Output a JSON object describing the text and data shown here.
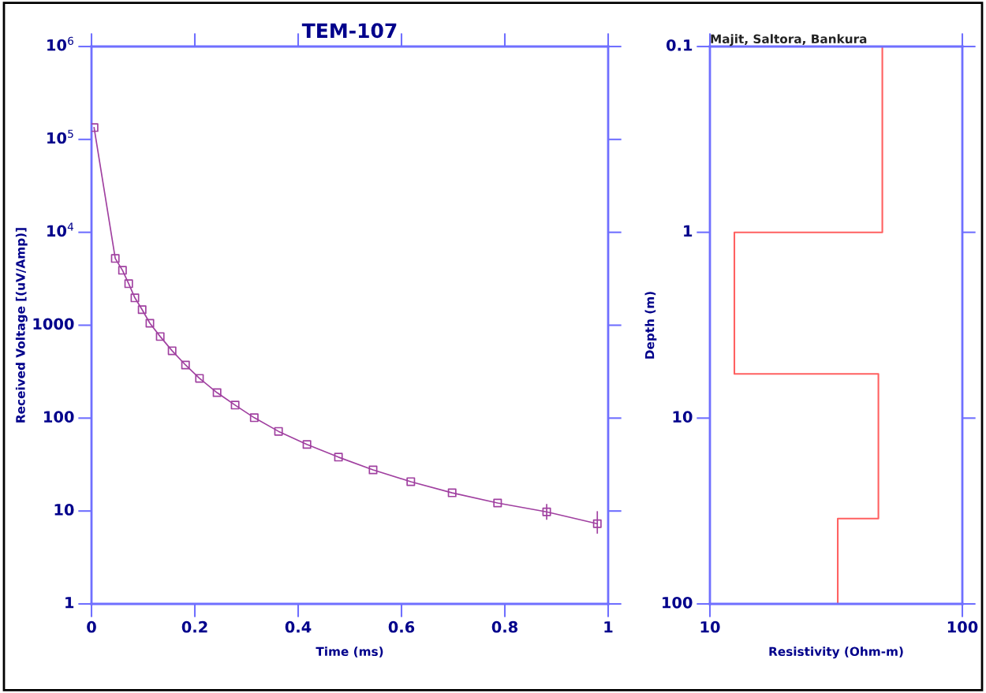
{
  "chart_data": [
    {
      "type": "line",
      "title": "TEM-107",
      "xlabel": "Time (ms)",
      "ylabel": "Received Voltage [(uV/Amp)]",
      "log": "y",
      "grid": false,
      "legend": false,
      "marker": "square",
      "line_style": "solid",
      "xlim": [
        0,
        1
      ],
      "xticks": [
        0,
        0.2,
        0.4,
        0.6,
        0.8,
        1
      ],
      "ylim": [
        1,
        1000000
      ],
      "yticks": [
        {
          "value": 1000000,
          "label": "10$^{6}$"
        },
        {
          "value": 100000,
          "label": "10$^{5}$"
        },
        {
          "value": 10000,
          "label": "10$^{4}$"
        },
        1000,
        100,
        10,
        1
      ],
      "series": [
        {
          "color": "#a040a0",
          "x": [
            0.005,
            0.046,
            0.06,
            0.072,
            0.084,
            0.098,
            0.113,
            0.133,
            0.156,
            0.182,
            0.209,
            0.243,
            0.278,
            0.315,
            0.362,
            0.417,
            0.478,
            0.545,
            0.618,
            0.698,
            0.786,
            0.881,
            0.979
          ],
          "values": [
            134000,
            5230,
            3900,
            2800,
            1970,
            1470,
            1050,
            755,
            531,
            373,
            268,
            188,
            138,
            101,
            72,
            52,
            38,
            27.7,
            20.7,
            15.7,
            12.2,
            9.8,
            7.3
          ],
          "errors": [
            null,
            null,
            null,
            null,
            null,
            null,
            null,
            null,
            null,
            null,
            null,
            null,
            null,
            null,
            null,
            null,
            null,
            null,
            null,
            null,
            null,
            [
              8.2,
              11.7
            ],
            [
              5.8,
              9.8
            ]
          ]
        }
      ]
    },
    {
      "type": "line",
      "title": "Majit, Saltora, Bankura",
      "xlabel": "Resistivity (Ohm-m)",
      "ylabel": "Depth (m)",
      "log": "xy",
      "grid": false,
      "legend": false,
      "marker": "none",
      "line_style": "solid",
      "xlim": [
        10,
        100
      ],
      "xticks": [
        10,
        100
      ],
      "ylim": [
        100,
        0.1
      ],
      "yticks": [
        0.1,
        1,
        10,
        100
      ],
      "series": [
        {
          "color": "#ff6060",
          "x": [
            48.2,
            48.2,
            12.5,
            12.5,
            46.5,
            46.5,
            32.1,
            32.1
          ],
          "values": [
            0.1,
            1,
            1,
            5.78,
            5.78,
            34.7,
            34.7,
            100
          ]
        }
      ]
    }
  ]
}
